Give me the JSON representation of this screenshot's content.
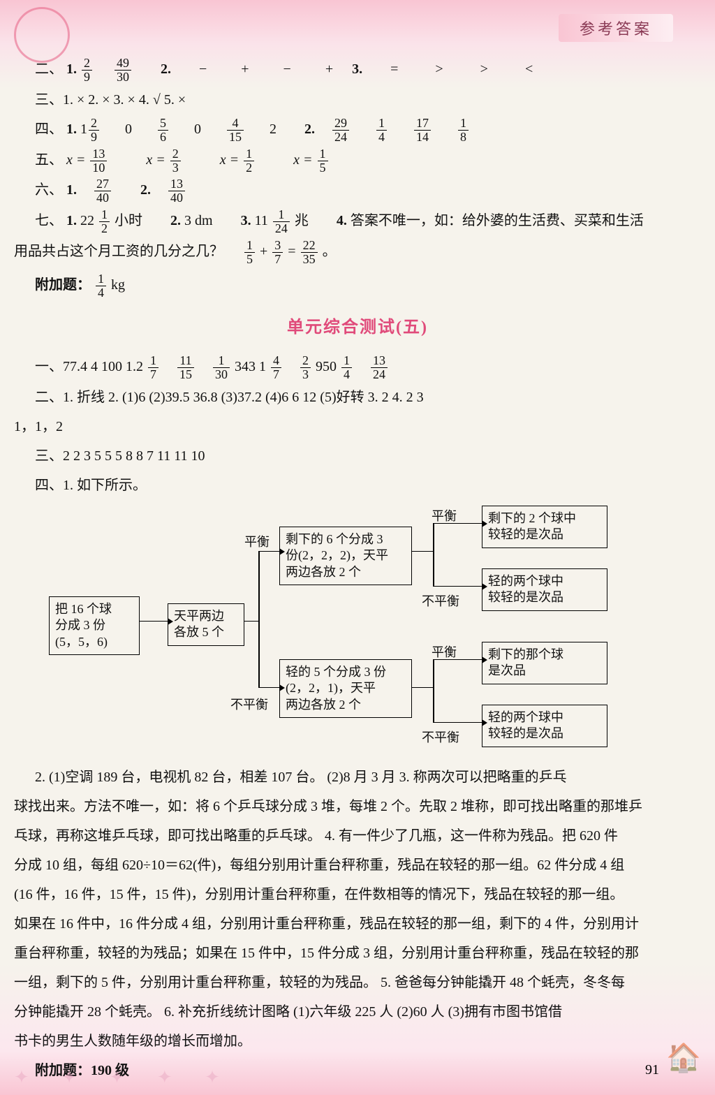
{
  "header": {
    "tab": "参考答案"
  },
  "answers": {
    "l2": "二、",
    "l2_1": "1.",
    "l2_2": "2.",
    "l2_2v": "− + − +",
    "l2_3": "3.",
    "l2_3v": "= > > <",
    "l3": "三、1. × 2. × 3. × 4. √ 5. ×",
    "l4": "四、",
    "l4_1": "1.",
    "l4_1b": "0",
    "l4_1d": "0",
    "l4_1f": "2",
    "l4_2": "2.",
    "l5": "五、",
    "l5a": "x =",
    "l5b": "x =",
    "l5c": "x =",
    "l5d": "x =",
    "l6": "六、",
    "l6_1": "1.",
    "l6_2": "2.",
    "l7": "七、",
    "l7_1": "1.",
    "l7_1a": "22",
    "l7_1b": " 小时",
    "l7_2": "2. 3 dm",
    "l7_3": "3. 11",
    "l7_3b": " 兆",
    "l7_4": "4. 答案不唯一，如：给外婆的生活费、买菜和生活",
    "l7_cont": "用品共占这个月工资的几分之几？",
    "l7_eq": " + ",
    "l7_eq2": " = ",
    "l7_end": "。",
    "bonus": "附加题：",
    "bonus_v": " kg",
    "title5": "单元综合测试(五)",
    "t5_1": "一、77.4 4 100 1.2 ",
    "t5_1mid": " 343 1 ",
    "t5_1mid2": " 950 ",
    "t5_2": "二、1. 折线 2. (1)6 (2)39.5 36.8 (3)37.2 (4)6 6 12 (5)好转 3. 2 4. 2 3",
    "t5_2b": "1，1，2",
    "t5_3": "三、2 2 3 5 5 5 8 8 7 11 11 10",
    "t5_4": "四、1. 如下所示。",
    "flow": {
      "n1": "把 16 个球\n分成 3 份\n(5，5，6)",
      "n2": "天平两边\n各放 5 个",
      "n3": "剩下的 6 个分成 3\n份(2，2，2)，天平\n两边各放 2 个",
      "n4": "轻的 5 个分成 3 份\n(2，2，1)，天平\n两边各放 2 个",
      "n5": "剩下的 2 个球中\n较轻的是次品",
      "n6": "轻的两个球中\n较轻的是次品",
      "n7": "剩下的那个球\n是次品",
      "n8": "轻的两个球中\n较轻的是次品",
      "bal": "平衡",
      "unbal": "不平衡"
    },
    "p2": "2. (1)空调 189 台，电视机 82 台，相差 107 台。 (2)8 月 3 月 3. 称两次可以把略重的乒乓",
    "p2b": "球找出来。方法不唯一，如：将 6 个乒乓球分成 3 堆，每堆 2 个。先取 2 堆称，即可找出略重的那堆乒",
    "p2c": "乓球，再称这堆乒乓球，即可找出略重的乒乓球。 4. 有一件少了几瓶，这一件称为残品。把 620 件",
    "p2d": "分成 10 组，每组 620÷10＝62(件)，每组分别用计重台秤称重，残品在较轻的那一组。62 件分成 4 组",
    "p2e": "(16 件，16 件，15 件，15 件)，分别用计重台秤称重，在件数相等的情况下，残品在较轻的那一组。",
    "p2f": "如果在 16 件中，16 件分成 4 组，分别用计重台秤称重，残品在较轻的那一组，剩下的 4 件，分别用计",
    "p2g": "重台秤称重，较轻的为残品；如果在 15 件中，15 件分成 3 组，分别用计重台秤称重，残品在较轻的那",
    "p2h": "一组，剩下的 5 件，分别用计重台秤称重，较轻的为残品。 5. 爸爸每分钟能撬开 48 个蚝壳，冬冬每",
    "p2i": "分钟能撬开 28 个蚝壳。 6. 补充折线统计图略 (1)六年级 225 人 (2)60 人 (3)拥有市图书馆借",
    "p2j": "书卡的男生人数随年级的增长而增加。",
    "bonus2": "附加题：190 级"
  },
  "pagenum": "91",
  "colors": {
    "accent": "#e04a7a",
    "border": "#000000",
    "bg_top": "#f9c5d3",
    "bg_mid": "#f6f3ec"
  }
}
